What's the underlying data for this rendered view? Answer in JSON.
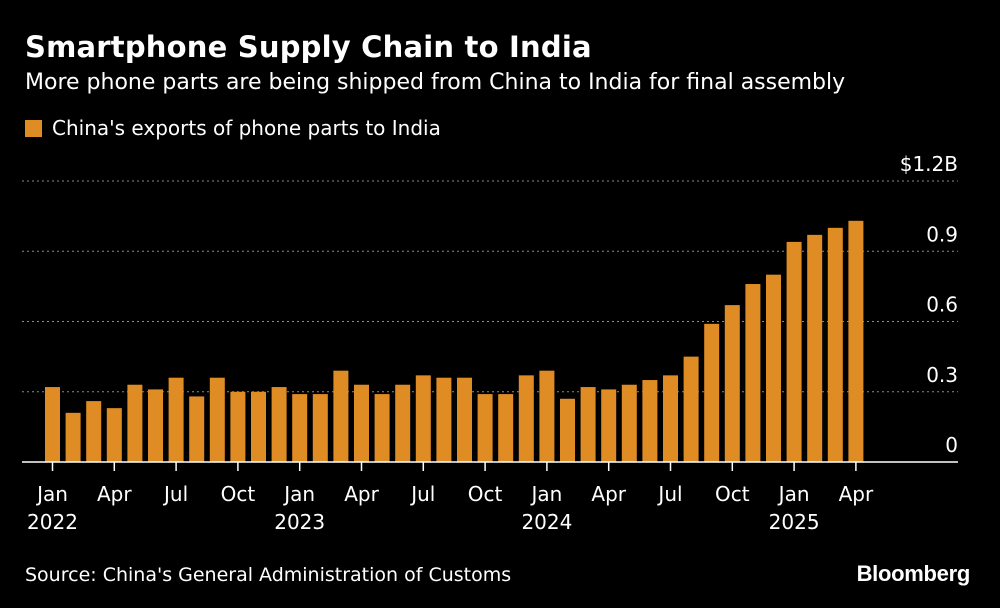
{
  "title": "Smartphone Supply Chain to India",
  "subtitle": "More phone parts are being shipped from China to India for final assembly",
  "source": "Source: China's General Administration of Customs",
  "logo": "Bloomberg",
  "colors": {
    "background": "#000000",
    "bar": "#e08c25",
    "text": "#ffffff",
    "grid": "#8a8a8a"
  },
  "chart_data": {
    "type": "bar",
    "title": "Smartphone Supply Chain to India",
    "subtitle": "More phone parts are being shipped from China to India for final assembly",
    "series": [
      {
        "name": "China's exports of phone parts to India",
        "color": "#e08c25",
        "values": [
          0.32,
          0.21,
          0.26,
          0.23,
          0.33,
          0.31,
          0.36,
          0.28,
          0.36,
          0.3,
          0.3,
          0.32,
          0.29,
          0.29,
          0.39,
          0.33,
          0.29,
          0.33,
          0.37,
          0.36,
          0.36,
          0.29,
          0.29,
          0.37,
          0.39,
          0.27,
          0.32,
          0.31,
          0.33,
          0.35,
          0.37,
          0.45,
          0.59,
          0.67,
          0.76,
          0.8,
          0.94,
          0.97,
          1.0,
          1.03
        ]
      }
    ],
    "categories": [
      "2022-01",
      "2022-02",
      "2022-03",
      "2022-04",
      "2022-05",
      "2022-06",
      "2022-07",
      "2022-08",
      "2022-09",
      "2022-10",
      "2022-11",
      "2022-12",
      "2023-01",
      "2023-02",
      "2023-03",
      "2023-04",
      "2023-05",
      "2023-06",
      "2023-07",
      "2023-08",
      "2023-09",
      "2023-10",
      "2023-11",
      "2023-12",
      "2024-01",
      "2024-02",
      "2024-03",
      "2024-04",
      "2024-05",
      "2024-06",
      "2024-07",
      "2024-08",
      "2024-09",
      "2024-10",
      "2024-11",
      "2024-12",
      "2025-01",
      "2025-02",
      "2025-03",
      "2025-04"
    ],
    "x_ticks": [
      {
        "index": 0,
        "month": "Jan",
        "year": "2022"
      },
      {
        "index": 3,
        "month": "Apr",
        "year": ""
      },
      {
        "index": 6,
        "month": "Jul",
        "year": ""
      },
      {
        "index": 9,
        "month": "Oct",
        "year": ""
      },
      {
        "index": 12,
        "month": "Jan",
        "year": "2023"
      },
      {
        "index": 15,
        "month": "Apr",
        "year": ""
      },
      {
        "index": 18,
        "month": "Jul",
        "year": ""
      },
      {
        "index": 21,
        "month": "Oct",
        "year": ""
      },
      {
        "index": 24,
        "month": "Jan",
        "year": "2024"
      },
      {
        "index": 27,
        "month": "Apr",
        "year": ""
      },
      {
        "index": 30,
        "month": "Jul",
        "year": ""
      },
      {
        "index": 33,
        "month": "Oct",
        "year": ""
      },
      {
        "index": 36,
        "month": "Jan",
        "year": "2025"
      },
      {
        "index": 39,
        "month": "Apr",
        "year": ""
      }
    ],
    "y_ticks": [
      {
        "value": 0,
        "label": "0"
      },
      {
        "value": 0.3,
        "label": "0.3"
      },
      {
        "value": 0.6,
        "label": "0.6"
      },
      {
        "value": 0.9,
        "label": "0.9"
      },
      {
        "value": 1.2,
        "label": "$1.2B"
      }
    ],
    "ylim": [
      0,
      1.2
    ],
    "grid": true,
    "legend_position": "top-left"
  }
}
